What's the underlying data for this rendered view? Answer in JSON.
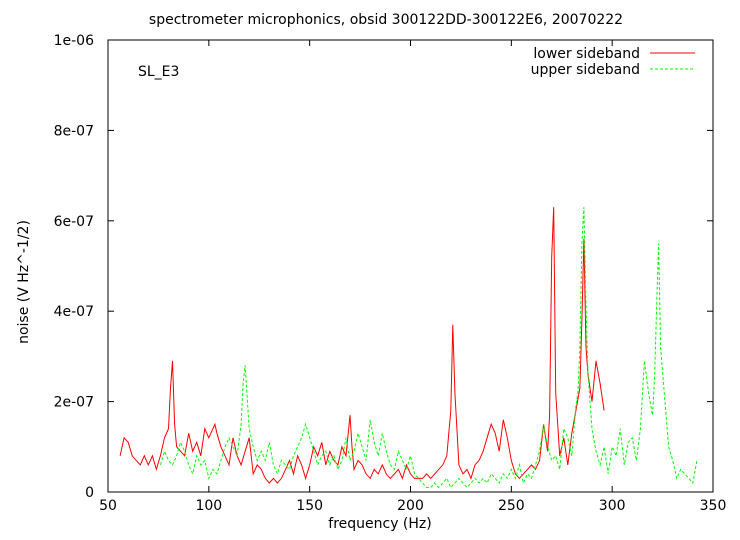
{
  "chart_data": {
    "type": "line",
    "title": "spectrometer microphonics, obsid 300122DD-300122E6, 20070222",
    "annotation": "SL_E3",
    "xlabel": "frequency (Hz)",
    "ylabel": "noise (V Hz^-1/2)",
    "xlim": [
      50,
      350
    ],
    "ylim": [
      0,
      1e-06
    ],
    "x_ticks": [
      {
        "v": 50,
        "label": "50"
      },
      {
        "v": 100,
        "label": "100"
      },
      {
        "v": 150,
        "label": "150"
      },
      {
        "v": 200,
        "label": "200"
      },
      {
        "v": 250,
        "label": "250"
      },
      {
        "v": 300,
        "label": "300"
      },
      {
        "v": 350,
        "label": "350"
      }
    ],
    "y_ticks": [
      {
        "v": 0,
        "label": "0"
      },
      {
        "v": 2e-07,
        "label": "2e-07"
      },
      {
        "v": 4e-07,
        "label": "4e-07"
      },
      {
        "v": 6e-07,
        "label": "6e-07"
      },
      {
        "v": 8e-07,
        "label": "8e-07"
      },
      {
        "v": 1e-06,
        "label": "1e-06"
      }
    ],
    "grid": false,
    "legend_position": "top-right",
    "series": [
      {
        "name": "lower sideband",
        "color": "#ff0000",
        "dash": "solid",
        "x": [
          56,
          58,
          60,
          62,
          64,
          66,
          68,
          70,
          72,
          74,
          76,
          78,
          80,
          81,
          82,
          83,
          84,
          86,
          88,
          90,
          92,
          94,
          96,
          98,
          100,
          102,
          103,
          104,
          106,
          108,
          110,
          112,
          114,
          116,
          118,
          120,
          122,
          124,
          126,
          128,
          130,
          132,
          134,
          136,
          138,
          140,
          142,
          144,
          146,
          148,
          150,
          152,
          154,
          156,
          158,
          160,
          162,
          164,
          166,
          168,
          170,
          171,
          172,
          174,
          176,
          178,
          180,
          182,
          184,
          186,
          188,
          190,
          192,
          194,
          196,
          198,
          200,
          202,
          204,
          206,
          208,
          210,
          212,
          214,
          216,
          218,
          220,
          221,
          222,
          224,
          226,
          228,
          230,
          232,
          234,
          236,
          238,
          240,
          242,
          244,
          246,
          248,
          250,
          252,
          254,
          256,
          258,
          260,
          262,
          264,
          266,
          268,
          269,
          270,
          271,
          272,
          274,
          276,
          278,
          280,
          282,
          284,
          285,
          286,
          287,
          288,
          290,
          292,
          294,
          296
        ],
        "y": [
          8e-08,
          1.2e-07,
          1.1e-07,
          8e-08,
          7e-08,
          6e-08,
          8e-08,
          6e-08,
          8e-08,
          5e-08,
          8e-08,
          1.2e-07,
          1.4e-07,
          2.3e-07,
          2.9e-07,
          1.5e-07,
          1e-07,
          9e-08,
          8e-08,
          1.3e-07,
          9e-08,
          1.1e-07,
          8e-08,
          1.4e-07,
          1.2e-07,
          1.4e-07,
          1.5e-07,
          1.3e-07,
          1e-07,
          8e-08,
          6e-08,
          1.2e-07,
          8e-08,
          6e-08,
          9e-08,
          1.2e-07,
          4e-08,
          6e-08,
          5e-08,
          3e-08,
          2e-08,
          3e-08,
          2e-08,
          3e-08,
          5e-08,
          7e-08,
          4e-08,
          8e-08,
          6e-08,
          3e-08,
          6e-08,
          1e-07,
          8e-08,
          1.1e-07,
          6e-08,
          9e-08,
          7e-08,
          6e-08,
          1e-07,
          8e-08,
          1.7e-07,
          1e-07,
          5e-08,
          7e-08,
          6e-08,
          4e-08,
          3e-08,
          5e-08,
          4e-08,
          6e-08,
          4e-08,
          3e-08,
          4e-08,
          5e-08,
          3e-08,
          6e-08,
          4e-08,
          3e-08,
          3e-08,
          3e-08,
          4e-08,
          3e-08,
          4e-08,
          5e-08,
          6e-08,
          8e-08,
          1.8e-07,
          3.7e-07,
          2.2e-07,
          6e-08,
          4e-08,
          5e-08,
          3e-08,
          6e-08,
          7e-08,
          9e-08,
          1.2e-07,
          1.5e-07,
          1.3e-07,
          9e-08,
          1.6e-07,
          1.2e-07,
          7e-08,
          4e-08,
          3e-08,
          4e-08,
          5e-08,
          6e-08,
          5e-08,
          7e-08,
          1.5e-07,
          9e-08,
          1.7e-07,
          5.2e-07,
          6.3e-07,
          2.2e-07,
          8e-08,
          1.2e-07,
          6e-08,
          1.3e-07,
          1.8e-07,
          2.3e-07,
          3.8e-07,
          5.6e-07,
          3.2e-07,
          2.6e-07,
          2e-07,
          2.9e-07,
          2.4e-07,
          1.8e-07
        ]
      },
      {
        "name": "upper sideband",
        "color": "#00ff00",
        "dash": "dashed",
        "x": [
          76,
          78,
          80,
          82,
          84,
          86,
          88,
          90,
          92,
          94,
          96,
          98,
          100,
          102,
          104,
          106,
          108,
          110,
          112,
          114,
          116,
          117,
          118,
          120,
          122,
          124,
          126,
          128,
          130,
          132,
          134,
          136,
          138,
          140,
          142,
          144,
          146,
          148,
          150,
          152,
          154,
          156,
          158,
          160,
          162,
          164,
          166,
          168,
          170,
          172,
          174,
          176,
          178,
          180,
          182,
          184,
          186,
          188,
          190,
          192,
          194,
          196,
          198,
          200,
          202,
          204,
          206,
          208,
          210,
          212,
          214,
          216,
          218,
          220,
          222,
          224,
          226,
          228,
          230,
          232,
          234,
          236,
          238,
          240,
          242,
          244,
          246,
          248,
          250,
          252,
          254,
          256,
          258,
          260,
          262,
          264,
          266,
          268,
          270,
          272,
          274,
          276,
          278,
          280,
          282,
          283,
          284,
          285,
          286,
          287,
          288,
          290,
          292,
          294,
          296,
          298,
          300,
          302,
          304,
          306,
          308,
          310,
          312,
          314,
          316,
          318,
          320,
          321,
          322,
          323,
          324,
          326,
          328,
          330,
          332,
          334,
          336,
          338,
          340,
          342
        ],
        "y": [
          6e-08,
          9e-08,
          7e-08,
          6e-08,
          8e-08,
          1.1e-07,
          9e-08,
          6e-08,
          4e-08,
          8e-08,
          6e-08,
          7e-08,
          3e-08,
          5e-08,
          4e-08,
          7e-08,
          1e-07,
          1.2e-07,
          1e-07,
          8e-08,
          1.5e-07,
          2.4e-07,
          2.8e-07,
          1.4e-07,
          1e-07,
          7e-08,
          9e-08,
          7e-08,
          1.1e-07,
          6e-08,
          4e-08,
          7e-08,
          6e-08,
          5e-08,
          8e-08,
          1e-07,
          1.2e-07,
          1.5e-07,
          1.2e-07,
          9e-08,
          6e-08,
          8e-08,
          9e-08,
          6e-08,
          8e-08,
          5e-08,
          7e-08,
          1.2e-07,
          7e-08,
          9e-08,
          1.3e-07,
          1e-07,
          7e-08,
          1.6e-07,
          1.1e-07,
          8e-08,
          1.3e-07,
          9e-08,
          6e-08,
          5e-08,
          9e-08,
          7e-08,
          5e-08,
          8e-08,
          4e-08,
          3e-08,
          2e-08,
          1e-08,
          1e-08,
          2e-08,
          1e-08,
          2e-08,
          3e-08,
          1e-08,
          2e-08,
          3e-08,
          2e-08,
          1e-08,
          2e-08,
          3e-08,
          2e-08,
          3e-08,
          2e-08,
          4e-08,
          3e-08,
          2e-08,
          4e-08,
          3e-08,
          5e-08,
          3e-08,
          6e-08,
          2e-08,
          4e-08,
          3e-08,
          6e-08,
          9e-08,
          1.5e-07,
          1e-07,
          7e-08,
          8e-08,
          5e-08,
          1.4e-07,
          1.2e-07,
          8e-08,
          1.9e-07,
          2.2e-07,
          3.2e-07,
          5.5e-07,
          6.3e-07,
          4.1e-07,
          2.6e-07,
          1.4e-07,
          9e-08,
          6e-08,
          1e-07,
          4e-08,
          1e-07,
          8e-08,
          1.4e-07,
          6e-08,
          1.1e-07,
          1.2e-07,
          7e-08,
          1.4e-07,
          2.9e-07,
          2.2e-07,
          1.7e-07,
          2.5e-07,
          4e-07,
          5.5e-07,
          3.2e-07,
          2.1e-07,
          1e-07,
          7e-08,
          3e-08,
          5e-08,
          4e-08,
          3e-08,
          2e-08,
          7e-08
        ]
      }
    ]
  }
}
